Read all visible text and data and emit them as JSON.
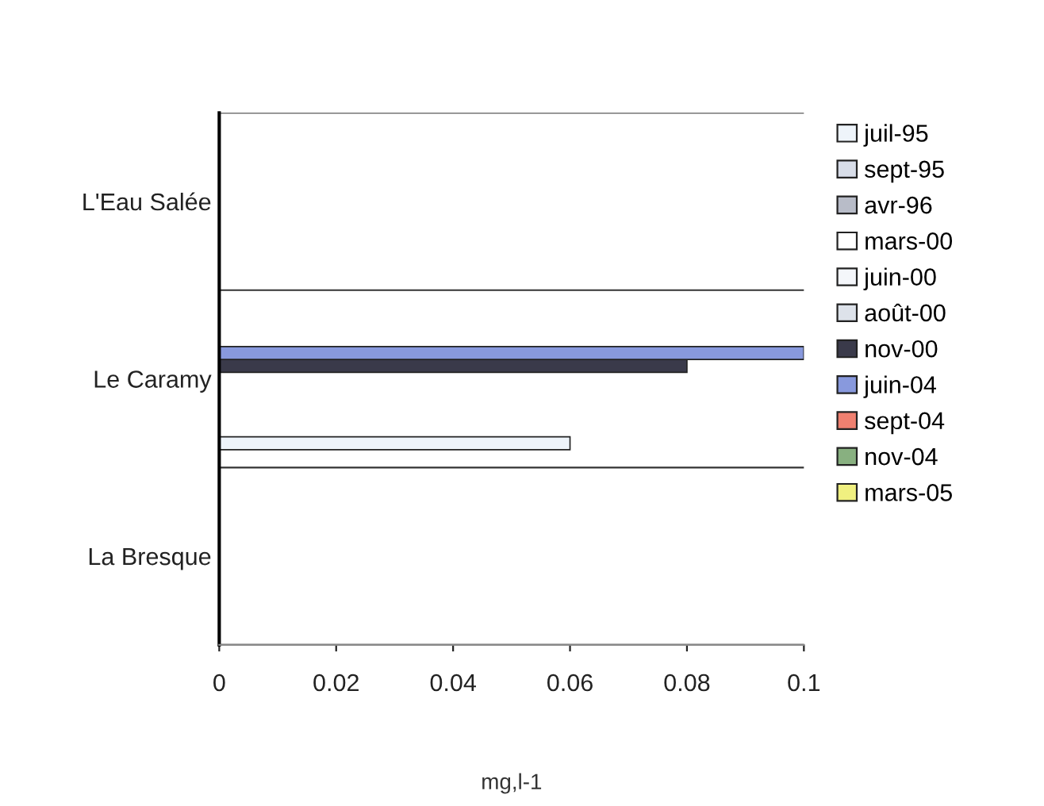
{
  "chart_data": {
    "type": "bar",
    "orientation": "horizontal",
    "xlabel": "mg,l-1",
    "categories": [
      "L'Eau Salée",
      "Le Caramy",
      "La Bresque"
    ],
    "series": [
      {
        "name": "juil-95",
        "color": "#eef4fa",
        "values": [
          null,
          0.06,
          null
        ]
      },
      {
        "name": "sept-95",
        "color": "#d8dde8",
        "values": [
          null,
          null,
          null
        ]
      },
      {
        "name": "avr-96",
        "color": "#b8bcc8",
        "values": [
          null,
          null,
          null
        ]
      },
      {
        "name": "mars-00",
        "color": "#ffffff",
        "values": [
          null,
          null,
          null
        ]
      },
      {
        "name": "juin-00",
        "color": "#f4f6fa",
        "values": [
          null,
          null,
          null
        ]
      },
      {
        "name": "août-00",
        "color": "#dde2ea",
        "values": [
          null,
          null,
          null
        ]
      },
      {
        "name": "nov-00",
        "color": "#3a3a4a",
        "values": [
          null,
          0.08,
          null
        ]
      },
      {
        "name": "juin-04",
        "color": "#8899dd",
        "values": [
          null,
          0.1,
          null
        ]
      },
      {
        "name": "sept-04",
        "color": "#f08070",
        "values": [
          null,
          null,
          null
        ]
      },
      {
        "name": "nov-04",
        "color": "#88b080",
        "values": [
          null,
          null,
          null
        ]
      },
      {
        "name": "mars-05",
        "color": "#f0f080",
        "values": [
          null,
          null,
          null
        ]
      }
    ],
    "xlim": [
      0,
      0.1
    ],
    "xticks": [
      0,
      0.02,
      0.04,
      0.06,
      0.08,
      0.1
    ],
    "grid": "y",
    "legend": "right"
  }
}
